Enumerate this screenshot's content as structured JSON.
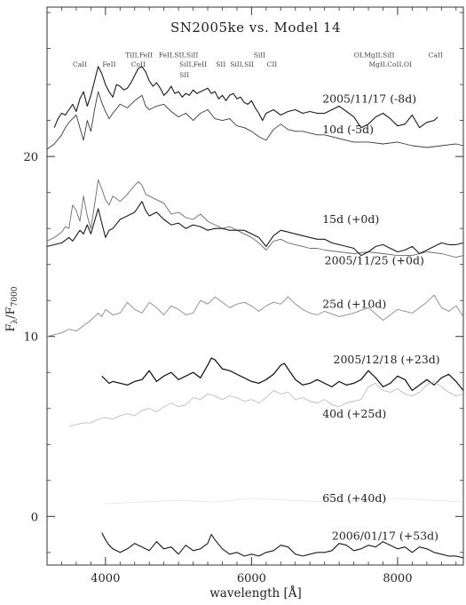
{
  "chart_data": {
    "type": "line",
    "title": "SN2005ke vs. Model 14",
    "xlabel": "wavelength [Å]",
    "ylabel_main": "F",
    "ylabel_sub1": "λ",
    "ylabel_mid": "/F",
    "ylabel_sub2": "7000",
    "xlim": [
      3200,
      8900
    ],
    "ylim": [
      -2.7,
      28.3
    ],
    "x_ticks": [
      4000,
      6000,
      8000
    ],
    "x_tick_labels": [
      "4000",
      "6000",
      "8000"
    ],
    "y_ticks": [
      0,
      10,
      20
    ],
    "y_tick_labels": [
      "0",
      "10",
      "20"
    ],
    "grid": false,
    "line_ids": [
      {
        "text": "CaII",
        "x": 3650,
        "y": 25.0
      },
      {
        "text": "FeII",
        "x": 4050,
        "y": 25.0
      },
      {
        "text": "TiII,FeII",
        "x": 4460,
        "y": 25.5
      },
      {
        "text": "CoII",
        "x": 4450,
        "y": 25.0
      },
      {
        "text": "FeII,SII,SiII",
        "x": 5000,
        "y": 25.5
      },
      {
        "text": "SiII,FeII",
        "x": 5200,
        "y": 25.0
      },
      {
        "text": "SII",
        "x": 5080,
        "y": 24.4
      },
      {
        "text": "SII",
        "x": 5580,
        "y": 25.0
      },
      {
        "text": "SiII,SII",
        "x": 5870,
        "y": 25.0
      },
      {
        "text": "SiII",
        "x": 6110,
        "y": 25.5
      },
      {
        "text": "CII",
        "x": 6280,
        "y": 25.0
      },
      {
        "text": "OI,MgII,SiII",
        "x": 7680,
        "y": 25.5
      },
      {
        "text": "MgII,CoII,OI",
        "x": 7900,
        "y": 25.0
      },
      {
        "text": "CaII",
        "x": 8520,
        "y": 25.5
      }
    ],
    "series": [
      {
        "name": "2005/11/17 (-8d)",
        "label_pos": [
          6970,
          23.0
        ],
        "color": "#1a1a1a",
        "width": 1.1,
        "x": [
          3300,
          3350,
          3400,
          3450,
          3500,
          3550,
          3600,
          3650,
          3700,
          3750,
          3800,
          3850,
          3900,
          3950,
          4000,
          4050,
          4100,
          4150,
          4200,
          4250,
          4300,
          4350,
          4400,
          4450,
          4500,
          4550,
          4600,
          4650,
          4700,
          4750,
          4800,
          4850,
          4900,
          4950,
          5000,
          5050,
          5100,
          5150,
          5200,
          5250,
          5300,
          5350,
          5400,
          5450,
          5500,
          5550,
          5600,
          5650,
          5700,
          5750,
          5800,
          5850,
          5900,
          5950,
          6000,
          6050,
          6100,
          6150,
          6200,
          6300,
          6400,
          6500,
          6600,
          6700,
          6800,
          6900,
          7000,
          7100,
          7200,
          7300,
          7400,
          7500,
          7600,
          7700,
          7800,
          7900,
          8000,
          8100,
          8200,
          8300,
          8400,
          8500,
          8550
        ],
        "y": [
          21.6,
          22.1,
          22.4,
          22.3,
          22.6,
          22.9,
          22.5,
          23.2,
          23.6,
          22.8,
          23.4,
          24.2,
          25.0,
          24.6,
          24.0,
          23.6,
          23.3,
          24.0,
          23.9,
          23.7,
          23.8,
          24.1,
          24.5,
          24.9,
          25.0,
          24.7,
          24.2,
          23.9,
          24.1,
          23.8,
          23.4,
          23.6,
          23.9,
          23.5,
          23.6,
          23.3,
          23.5,
          23.4,
          23.7,
          23.5,
          23.6,
          23.7,
          23.8,
          23.5,
          23.6,
          23.2,
          23.4,
          23.1,
          23.4,
          23.5,
          23.2,
          23.3,
          23.0,
          22.9,
          23.1,
          22.7,
          22.4,
          22.0,
          22.4,
          22.6,
          22.3,
          22.5,
          22.6,
          22.4,
          22.5,
          22.4,
          22.4,
          22.6,
          22.8,
          22.5,
          22.2,
          21.6,
          21.8,
          22.2,
          22.4,
          22.1,
          21.7,
          21.8,
          22.3,
          21.6,
          21.9,
          22.0,
          22.2
        ]
      },
      {
        "name": "10d (-5d)",
        "label_pos": [
          6970,
          21.3
        ],
        "color": "#3a3a3a",
        "width": 0.9,
        "x": [
          3200,
          3300,
          3400,
          3450,
          3500,
          3550,
          3600,
          3650,
          3700,
          3750,
          3800,
          3850,
          3900,
          3950,
          4000,
          4050,
          4100,
          4200,
          4300,
          4400,
          4500,
          4550,
          4600,
          4700,
          4800,
          4900,
          5000,
          5100,
          5200,
          5300,
          5400,
          5500,
          5600,
          5700,
          5800,
          5900,
          6000,
          6100,
          6200,
          6300,
          6400,
          6500,
          6600,
          6700,
          6800,
          6900,
          7000,
          7200,
          7400,
          7600,
          7800,
          8000,
          8200,
          8400,
          8600,
          8800,
          8900
        ],
        "y": [
          20.4,
          20.7,
          21.2,
          21.6,
          21.9,
          22.1,
          22.3,
          21.6,
          20.9,
          22.0,
          21.4,
          22.6,
          23.6,
          23.0,
          22.5,
          22.1,
          22.4,
          22.9,
          22.7,
          23.1,
          23.4,
          22.8,
          22.6,
          22.8,
          22.9,
          22.5,
          22.2,
          22.4,
          22.0,
          22.4,
          22.6,
          22.1,
          22.0,
          22.1,
          21.7,
          21.6,
          21.4,
          21.1,
          20.9,
          21.5,
          21.8,
          21.5,
          21.4,
          21.4,
          21.3,
          21.2,
          21.2,
          21.0,
          20.8,
          20.8,
          20.7,
          20.8,
          20.6,
          20.5,
          20.6,
          20.7,
          20.6
        ]
      },
      {
        "name": "15d (+0d)",
        "label_pos": [
          6970,
          16.3
        ],
        "color": "#6a6a6a",
        "width": 0.9,
        "x": [
          3200,
          3300,
          3400,
          3450,
          3500,
          3550,
          3600,
          3650,
          3700,
          3750,
          3800,
          3850,
          3900,
          3950,
          4000,
          4050,
          4100,
          4200,
          4300,
          4400,
          4450,
          4500,
          4550,
          4600,
          4700,
          4800,
          4900,
          5000,
          5100,
          5200,
          5300,
          5400,
          5500,
          5600,
          5700,
          5800,
          5900,
          6000,
          6100,
          6200,
          6300,
          6400,
          6500,
          6600,
          6700,
          6800,
          6900,
          7000,
          7200,
          7400,
          7600,
          7800,
          8000,
          8200,
          8400,
          8600,
          8800,
          8900
        ],
        "y": [
          15.3,
          15.5,
          15.8,
          16.1,
          16.0,
          17.3,
          17.0,
          16.4,
          17.8,
          16.7,
          16.0,
          17.3,
          18.7,
          18.2,
          17.6,
          17.3,
          17.8,
          17.5,
          17.9,
          18.4,
          18.6,
          18.4,
          17.9,
          17.8,
          17.6,
          17.4,
          16.8,
          16.9,
          16.6,
          16.5,
          16.8,
          16.4,
          16.2,
          16.0,
          16.1,
          15.9,
          15.7,
          15.5,
          15.2,
          14.8,
          15.3,
          15.4,
          15.2,
          15.1,
          15.0,
          14.9,
          14.9,
          14.8,
          14.7,
          14.6,
          14.7,
          14.6,
          14.5,
          14.5,
          14.7,
          14.6,
          14.4,
          14.5
        ]
      },
      {
        "name": "2005/11/25 (+0d)",
        "label_pos": [
          7000,
          14.0
        ],
        "color": "#1a1a1a",
        "width": 1.1,
        "x": [
          3200,
          3300,
          3400,
          3500,
          3550,
          3600,
          3650,
          3700,
          3750,
          3800,
          3850,
          3900,
          3950,
          4000,
          4050,
          4100,
          4200,
          4300,
          4400,
          4500,
          4550,
          4600,
          4700,
          4800,
          4900,
          5000,
          5100,
          5200,
          5300,
          5400,
          5500,
          5600,
          5700,
          5800,
          5900,
          6000,
          6100,
          6200,
          6300,
          6400,
          6500,
          6600,
          6700,
          6800,
          6900,
          7000,
          7100,
          7200,
          7300,
          7400,
          7500,
          7600,
          7700,
          7800,
          7900,
          8000,
          8100,
          8200,
          8300,
          8400,
          8500,
          8600,
          8700,
          8800,
          8900
        ],
        "y": [
          15.0,
          15.1,
          15.2,
          15.5,
          15.3,
          15.6,
          15.9,
          15.7,
          16.2,
          15.7,
          16.4,
          17.1,
          16.3,
          15.5,
          15.9,
          16.0,
          16.5,
          16.7,
          16.9,
          17.5,
          17.0,
          16.7,
          16.9,
          16.5,
          16.2,
          16.3,
          16.0,
          16.2,
          16.1,
          15.9,
          16.0,
          16.0,
          15.9,
          15.9,
          15.9,
          15.7,
          15.5,
          15.0,
          15.6,
          15.9,
          15.8,
          15.7,
          15.6,
          15.5,
          15.4,
          15.4,
          15.2,
          15.1,
          15.0,
          14.9,
          14.5,
          14.7,
          15.0,
          15.1,
          14.9,
          14.7,
          14.8,
          15.0,
          14.6,
          14.8,
          15.0,
          15.2,
          15.1,
          15.1,
          15.2
        ]
      },
      {
        "name": "25d (+10d)",
        "label_pos": [
          6970,
          11.6
        ],
        "color": "#8a8a8a",
        "width": 0.9,
        "x": [
          3200,
          3300,
          3400,
          3500,
          3600,
          3700,
          3800,
          3900,
          3950,
          4000,
          4100,
          4200,
          4300,
          4400,
          4500,
          4600,
          4700,
          4800,
          4900,
          5000,
          5100,
          5200,
          5300,
          5400,
          5500,
          5600,
          5700,
          5800,
          5900,
          6000,
          6100,
          6200,
          6300,
          6400,
          6500,
          6600,
          6700,
          6800,
          6900,
          7000,
          7200,
          7400,
          7600,
          7800,
          8000,
          8200,
          8400,
          8500,
          8600,
          8700,
          8800,
          8900
        ],
        "y": [
          10.0,
          10.1,
          10.2,
          10.4,
          10.3,
          10.6,
          10.9,
          11.3,
          11.1,
          11.5,
          11.2,
          11.3,
          11.9,
          11.5,
          11.3,
          11.9,
          11.6,
          11.2,
          11.7,
          11.5,
          11.2,
          11.3,
          12.0,
          11.8,
          12.2,
          11.9,
          11.6,
          11.8,
          11.9,
          11.7,
          11.4,
          11.7,
          11.9,
          11.8,
          12.2,
          11.8,
          11.5,
          11.3,
          11.2,
          11.4,
          11.1,
          11.3,
          11.6,
          10.9,
          11.5,
          11.3,
          11.9,
          12.3,
          11.6,
          11.4,
          11.7,
          11.1
        ]
      },
      {
        "name": "2005/12/18 (+23d)",
        "label_pos": [
          7120,
          8.5
        ],
        "color": "#1a1a1a",
        "width": 1.3,
        "x": [
          3950,
          4000,
          4050,
          4100,
          4200,
          4300,
          4400,
          4500,
          4600,
          4700,
          4800,
          4900,
          5000,
          5100,
          5200,
          5300,
          5400,
          5450,
          5500,
          5600,
          5700,
          5800,
          5900,
          6000,
          6100,
          6200,
          6300,
          6400,
          6450,
          6500,
          6600,
          6700,
          6800,
          6900,
          7000,
          7100,
          7200,
          7300,
          7400,
          7500,
          7600,
          7700,
          7800,
          7900,
          8000,
          8100,
          8200,
          8300,
          8400,
          8500,
          8600,
          8700,
          8800,
          8900
        ],
        "y": [
          7.8,
          7.6,
          7.4,
          7.5,
          7.4,
          7.3,
          7.5,
          7.6,
          8.1,
          7.5,
          7.8,
          8.0,
          7.6,
          7.8,
          8.0,
          7.7,
          8.4,
          8.8,
          8.7,
          8.2,
          8.1,
          7.9,
          7.7,
          7.5,
          7.4,
          7.6,
          7.9,
          8.4,
          8.5,
          8.2,
          7.6,
          7.3,
          7.4,
          7.6,
          7.4,
          7.2,
          7.5,
          7.3,
          7.4,
          7.6,
          8.1,
          7.7,
          7.2,
          7.4,
          7.8,
          7.6,
          7.0,
          7.3,
          7.6,
          7.3,
          7.7,
          7.9,
          7.5,
          7.0
        ]
      },
      {
        "name": "40d (+25d)",
        "label_pos": [
          6970,
          5.5
        ],
        "color": "#b5b5b5",
        "width": 0.8,
        "x": [
          3500,
          3600,
          3700,
          3800,
          3900,
          4000,
          4100,
          4200,
          4300,
          4400,
          4500,
          4600,
          4700,
          4800,
          4900,
          5000,
          5100,
          5200,
          5300,
          5400,
          5500,
          5600,
          5700,
          5800,
          5900,
          6000,
          6100,
          6200,
          6300,
          6400,
          6500,
          6600,
          6700,
          6800,
          6900,
          7000,
          7100,
          7200,
          7300,
          7400,
          7500,
          7600,
          7700,
          7800,
          7900,
          8000,
          8100,
          8200,
          8300,
          8400,
          8500,
          8600,
          8700,
          8800,
          8900
        ],
        "y": [
          5.0,
          5.1,
          5.2,
          5.2,
          5.4,
          5.5,
          5.4,
          5.6,
          5.7,
          5.6,
          5.9,
          6.0,
          5.8,
          6.1,
          6.3,
          6.1,
          6.2,
          6.6,
          6.5,
          6.8,
          6.7,
          6.5,
          6.7,
          6.6,
          6.4,
          6.5,
          6.3,
          6.6,
          7.0,
          6.8,
          6.9,
          6.5,
          6.6,
          6.4,
          6.3,
          6.5,
          6.2,
          6.1,
          6.3,
          6.4,
          6.5,
          7.2,
          7.4,
          7.0,
          6.9,
          7.1,
          6.8,
          6.7,
          6.9,
          7.3,
          7.5,
          7.2,
          6.9,
          6.7,
          6.8
        ]
      },
      {
        "name": "65d (+40d)",
        "label_pos": [
          6970,
          0.8
        ],
        "color": "#dcdcdc",
        "width": 0.6,
        "x": [
          4000,
          4500,
          5000,
          5500,
          6000,
          6500,
          7000,
          7500,
          8000,
          8500,
          8900
        ],
        "y": [
          0.7,
          0.8,
          0.9,
          0.8,
          1.0,
          0.9,
          0.8,
          0.9,
          1.0,
          0.9,
          0.8
        ]
      },
      {
        "name": "2006/01/17 (+53d)",
        "label_pos": [
          7100,
          -1.3
        ],
        "color": "#1a1a1a",
        "width": 1.1,
        "x": [
          3950,
          4000,
          4050,
          4100,
          4200,
          4300,
          4400,
          4500,
          4600,
          4700,
          4800,
          4900,
          5000,
          5100,
          5200,
          5300,
          5400,
          5450,
          5500,
          5600,
          5700,
          5800,
          5900,
          6000,
          6100,
          6200,
          6300,
          6400,
          6500,
          6600,
          6700,
          6800,
          6900,
          7000,
          7100,
          7200,
          7300,
          7400,
          7500,
          7600,
          7700,
          7800,
          7900,
          8000,
          8100,
          8200,
          8300,
          8400,
          8500,
          8600,
          8700,
          8800,
          8900
        ],
        "y": [
          -0.9,
          -1.3,
          -1.6,
          -1.8,
          -2.0,
          -1.8,
          -1.5,
          -1.7,
          -1.9,
          -1.4,
          -1.8,
          -1.7,
          -2.1,
          -1.6,
          -1.9,
          -1.8,
          -1.5,
          -1.0,
          -1.3,
          -1.8,
          -2.1,
          -2.0,
          -2.2,
          -2.1,
          -2.2,
          -2.0,
          -1.9,
          -1.6,
          -1.7,
          -2.1,
          -2.2,
          -2.1,
          -2.0,
          -2.0,
          -1.9,
          -1.5,
          -1.6,
          -1.9,
          -1.8,
          -1.6,
          -1.7,
          -1.4,
          -1.6,
          -1.8,
          -1.7,
          -2.0,
          -1.7,
          -1.8,
          -2.0,
          -2.1,
          -2.2,
          -2.2,
          -2.3
        ]
      }
    ]
  }
}
